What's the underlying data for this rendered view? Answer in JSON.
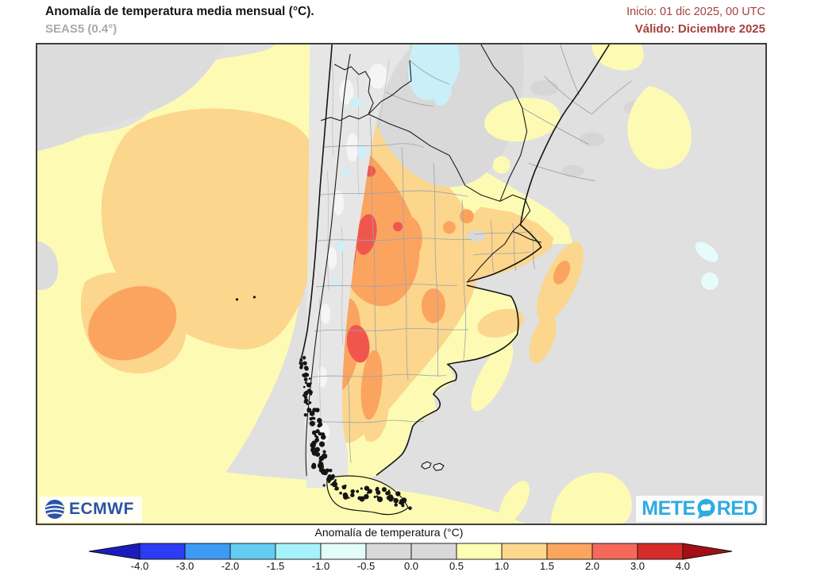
{
  "header": {
    "title": "Anomalía de temperatura media mensual (°C).",
    "subtitle": "SEAS5 (0.4°)",
    "init": "Inicio: 01 dic 2025, 00 UTC",
    "valid": "Válido: Diciembre 2025",
    "accent_color": "#a6403c"
  },
  "logos": {
    "ecmwf": "ECMWF",
    "meteored_prefix": "METE",
    "meteored_suffix": "RED"
  },
  "legend": {
    "title": "Anomalía de temperatura (°C)",
    "ticks": [
      "-4.0",
      "-3.0",
      "-2.0",
      "-1.5",
      "-1.0",
      "-0.5",
      "0.0",
      "0.5",
      "1.0",
      "1.5",
      "2.0",
      "3.0",
      "4.0"
    ],
    "segment_colors": [
      "#2b3cf2",
      "#3d9af5",
      "#64ccf3",
      "#a6f2fa",
      "#e2fdf6",
      "#d9d9d9",
      "#d9d9d9",
      "#fefeb4",
      "#fdd78e",
      "#fca55f",
      "#f4695a",
      "#d62b28"
    ],
    "left_arrow_color": "#1c1cbe",
    "right_arrow_color": "#a30f15",
    "zero_anomaly_color": "#e0e0e0"
  }
}
